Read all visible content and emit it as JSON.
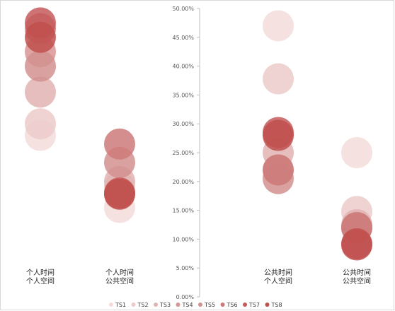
{
  "chart_data": {
    "type": "scatter",
    "title": "",
    "xlabel": "",
    "ylabel": "",
    "ylim": [
      0,
      0.5
    ],
    "y_ticks": [
      "0.00%",
      "5.00%",
      "10.00%",
      "15.00%",
      "20.00%",
      "25.00%",
      "30.00%",
      "35.00%",
      "40.00%",
      "45.00%",
      "50.00%"
    ],
    "categories": [
      [
        "个人时间",
        "个人空间"
      ],
      [
        "个人时间",
        "公共空间"
      ],
      [
        "公共时间",
        "个人空间"
      ],
      [
        "公共时间",
        "公共空间"
      ]
    ],
    "marker": "large translucent circle",
    "grid": false,
    "legend_position": "bottom",
    "series": [
      {
        "name": "TS1",
        "color": "#f2dcdb",
        "values": [
          0.28,
          0.155,
          0.47,
          0.25
        ]
      },
      {
        "name": "TS2",
        "color": "#eccaca",
        "values": [
          0.3,
          0.19,
          0.378,
          0.148
        ]
      },
      {
        "name": "TS3",
        "color": "#e0b3b2",
        "values": [
          0.355,
          0.2,
          0.25,
          0.125
        ]
      },
      {
        "name": "TS4",
        "color": "#d99594",
        "values": [
          0.425,
          0.18,
          0.22,
          0.12
        ]
      },
      {
        "name": "TS5",
        "color": "#d2908f",
        "values": [
          0.4,
          0.233,
          0.205,
          0.12
        ]
      },
      {
        "name": "TS6",
        "color": "#cc7a79",
        "values": [
          0.465,
          0.265,
          0.22,
          0.12
        ]
      },
      {
        "name": "TS7",
        "color": "#c55a5a",
        "values": [
          0.475,
          0.18,
          0.285,
          0.09
        ]
      },
      {
        "name": "TS8",
        "color": "#c0504d",
        "values": [
          0.45,
          0.178,
          0.28,
          0.092
        ]
      }
    ]
  }
}
